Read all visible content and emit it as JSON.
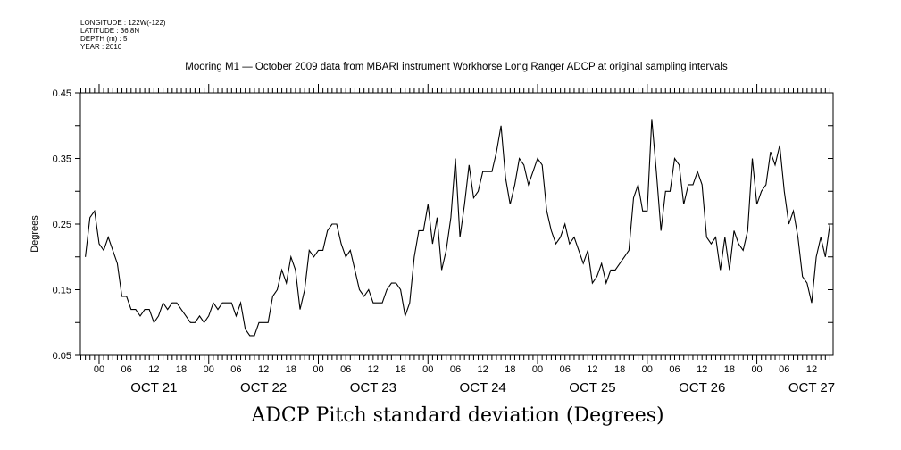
{
  "header": {
    "longitude": "LONGITUDE : 122W(-122)",
    "latitude": "LATITUDE : 36.8N",
    "depth": "DEPTH (m) : 5",
    "year": "YEAR : 2010"
  },
  "chart_data": {
    "type": "line",
    "title": "Mooring M1 — October 2009 data from MBARI instrument Workhorse Long Ranger ADCP at original sampling intervals",
    "xlabel": "ADCP Pitch standard deviation (Degrees)",
    "ylabel": "Degrees",
    "x_unit": "hours since OCT 21 00:00",
    "x_start": -3,
    "x_step": 1,
    "xlim": [
      -4.1,
      160.7
    ],
    "ylim": [
      0.05,
      0.45
    ],
    "y_ticks": [
      "0.05",
      "0.15",
      "0.25",
      "0.35",
      "0.45"
    ],
    "x_hour_ticks": [
      "00",
      "06",
      "12",
      "18"
    ],
    "day_labels": [
      "OCT 21",
      "OCT 22",
      "OCT 23",
      "OCT 24",
      "OCT 25",
      "OCT 26",
      "OCT 27"
    ],
    "grid": false,
    "color": "#000000",
    "values": [
      0.2,
      0.26,
      0.27,
      0.22,
      0.21,
      0.23,
      0.21,
      0.19,
      0.14,
      0.14,
      0.12,
      0.12,
      0.11,
      0.12,
      0.12,
      0.1,
      0.11,
      0.13,
      0.12,
      0.13,
      0.13,
      0.12,
      0.11,
      0.1,
      0.1,
      0.11,
      0.1,
      0.11,
      0.13,
      0.12,
      0.13,
      0.13,
      0.13,
      0.11,
      0.13,
      0.09,
      0.08,
      0.08,
      0.1,
      0.1,
      0.1,
      0.14,
      0.15,
      0.18,
      0.16,
      0.2,
      0.18,
      0.12,
      0.15,
      0.21,
      0.2,
      0.21,
      0.21,
      0.24,
      0.25,
      0.25,
      0.22,
      0.2,
      0.21,
      0.18,
      0.15,
      0.14,
      0.15,
      0.13,
      0.13,
      0.13,
      0.15,
      0.16,
      0.16,
      0.15,
      0.11,
      0.13,
      0.2,
      0.24,
      0.24,
      0.28,
      0.22,
      0.26,
      0.18,
      0.21,
      0.26,
      0.35,
      0.23,
      0.28,
      0.34,
      0.29,
      0.3,
      0.33,
      0.33,
      0.33,
      0.36,
      0.4,
      0.32,
      0.28,
      0.31,
      0.35,
      0.34,
      0.31,
      0.33,
      0.35,
      0.34,
      0.27,
      0.24,
      0.22,
      0.23,
      0.25,
      0.22,
      0.23,
      0.21,
      0.19,
      0.21,
      0.16,
      0.17,
      0.19,
      0.16,
      0.18,
      0.18,
      0.19,
      0.2,
      0.21,
      0.29,
      0.31,
      0.27,
      0.27,
      0.41,
      0.33,
      0.24,
      0.3,
      0.3,
      0.35,
      0.34,
      0.28,
      0.31,
      0.31,
      0.33,
      0.31,
      0.23,
      0.22,
      0.23,
      0.18,
      0.23,
      0.18,
      0.24,
      0.22,
      0.21,
      0.24,
      0.35,
      0.28,
      0.3,
      0.31,
      0.36,
      0.34,
      0.37,
      0.3,
      0.25,
      0.27,
      0.23,
      0.17,
      0.16,
      0.13,
      0.2,
      0.23,
      0.2,
      0.25
    ]
  }
}
